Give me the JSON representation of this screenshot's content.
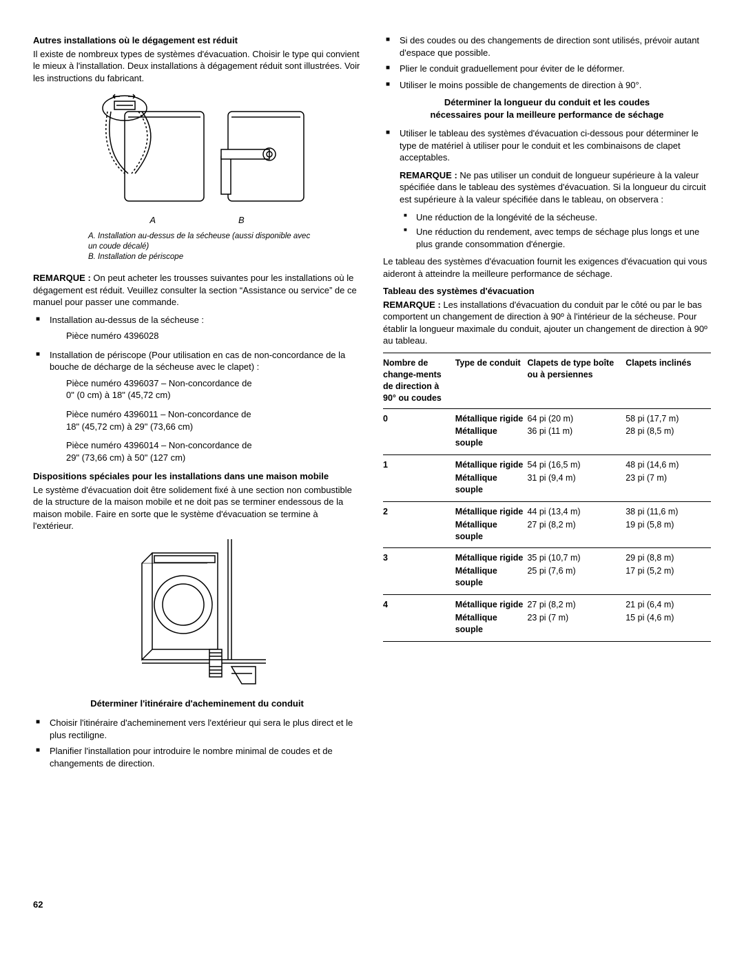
{
  "left": {
    "h_reduced": "Autres installations où le dégagement est réduit",
    "reduced_p": "Il existe de nombreux types de systèmes d'évacuation. Choisir le type qui convient le mieux à l'installation. Deux installations à dégagement réduit sont illustrées. Voir les instructions du fabricant.",
    "fig_a": "A",
    "fig_b": "B",
    "caption_a": "A. Installation au-dessus de la sécheuse (aussi disponible avec un coude décalé)",
    "caption_b": "B. Installation de périscope",
    "remark_label": "REMARQUE :",
    "remark_text": " On peut acheter les trousses suivantes pour les installations où le dégagement est réduit. Veuillez consulter la section “Assistance ou service” de ce manuel pour passer une commande.",
    "li_overdryer": "Installation au-dessus de la sécheuse :",
    "piece_1": "Pièce numéro 4396028",
    "li_periscope": "Installation de périscope (Pour utilisation en cas de non-concordance de la bouche de décharge de la sécheuse avec le clapet) :",
    "piece_2a": "Pièce numéro 4396037 – Non-concordance de",
    "piece_2b": "0\" (0 cm) à 18\" (45,72 cm)",
    "piece_3a": "Pièce numéro 4396011 – Non-concordance de",
    "piece_3b": "18\" (45,72 cm) à 29\" (73,66 cm)",
    "piece_4a": "Pièce numéro 4396014 – Non-concordance de",
    "piece_4b": "29\" (73,66 cm) à 50\" (127 cm)",
    "h_mobile": "Dispositions spéciales pour les installations dans une maison mobile",
    "mobile_p": "Le système d'évacuation doit être solidement fixé à une section non combustible de la structure de la maison mobile et ne doit pas se terminer endessous de la maison mobile. Faire en sorte que le système d'évacuation se termine à l'extérieur.",
    "h_route": "Déterminer l'itinéraire d'acheminement du conduit",
    "route_li1": "Choisir l'itinéraire d'acheminement vers l'extérieur qui sera le plus direct et le plus rectiligne.",
    "route_li2": "Planifier l'installation pour introduire le nombre minimal de coudes et de changements de direction."
  },
  "right": {
    "top_li1": "Si des coudes ou des changements de direction sont utilisés, prévoir autant d'espace que possible.",
    "top_li2": "Plier le conduit graduellement pour éviter de le déformer.",
    "top_li3": "Utiliser le moins possible de changements de direction à 90°.",
    "h_determine1": "Déterminer la longueur du conduit et les coudes",
    "h_determine2": "nécessaires pour la meilleure performance de séchage",
    "det_li1": "Utiliser le tableau des systèmes d'évacuation ci-dessous pour déterminer le type de matériel à utiliser pour le conduit et les combinaisons de clapet acceptables.",
    "det_remark_label": "REMARQUE :",
    "det_remark_text": " Ne pas utiliser un conduit de longueur supérieure à la valeur spécifiée dans le tableau des systèmes d'évacuation. Si la longueur du circuit est supérieure à la valeur spécifiée dans le tableau, on observera :",
    "det_sub1": "Une réduction de la longévité de la sécheuse.",
    "det_sub2": "Une réduction du rendement, avec temps de séchage plus longs et une plus grande consommation d'énergie.",
    "det_p2": "Le tableau des systèmes d'évacuation fournit les exigences d'évacuation qui vous aideront à atteindre la meilleure performance de séchage.",
    "h_table": "Tableau des systèmes d'évacuation",
    "table_remark_label": "REMARQUE :",
    "table_remark_text": " Les installations d'évacuation du conduit par le côté ou par le bas comportent un changement de direction à 90º à l'intérieur de la sécheuse. Pour établir la longueur maximale du conduit, ajouter un changement de direction à 90º au tableau.",
    "th1": "Nombre de change-ments de direction à 90° ou coudes",
    "th2": "Type de conduit",
    "th3": "Clapets de type boîte ou à persiennes",
    "th4": "Clapets inclinés",
    "rigid": "Métallique rigide",
    "flex": "Métallique souple",
    "rows": [
      {
        "n": "0",
        "r_box": "64 pi (20 m)",
        "r_ang": "58 pi (17,7 m)",
        "f_box": "36 pi (11 m)",
        "f_ang": "28 pi (8,5 m)"
      },
      {
        "n": "1",
        "r_box": "54 pi (16,5 m)",
        "r_ang": "48 pi (14,6 m)",
        "f_box": "31 pi (9,4 m)",
        "f_ang": "23 pi (7 m)"
      },
      {
        "n": "2",
        "r_box": "44 pi (13,4 m)",
        "r_ang": "38 pi (11,6 m)",
        "f_box": "27 pi (8,2 m)",
        "f_ang": "19 pi (5,8 m)"
      },
      {
        "n": "3",
        "r_box": "35 pi (10,7 m)",
        "r_ang": "29 pi (8,8 m)",
        "f_box": "25 pi (7,6 m)",
        "f_ang": "17 pi (5,2 m)"
      },
      {
        "n": "4",
        "r_box": "27 pi (8,2 m)",
        "r_ang": "21 pi (6,4 m)",
        "f_box": "23 pi (7 m)",
        "f_ang": "15 pi (4,6 m)"
      }
    ]
  },
  "page_number": "62"
}
